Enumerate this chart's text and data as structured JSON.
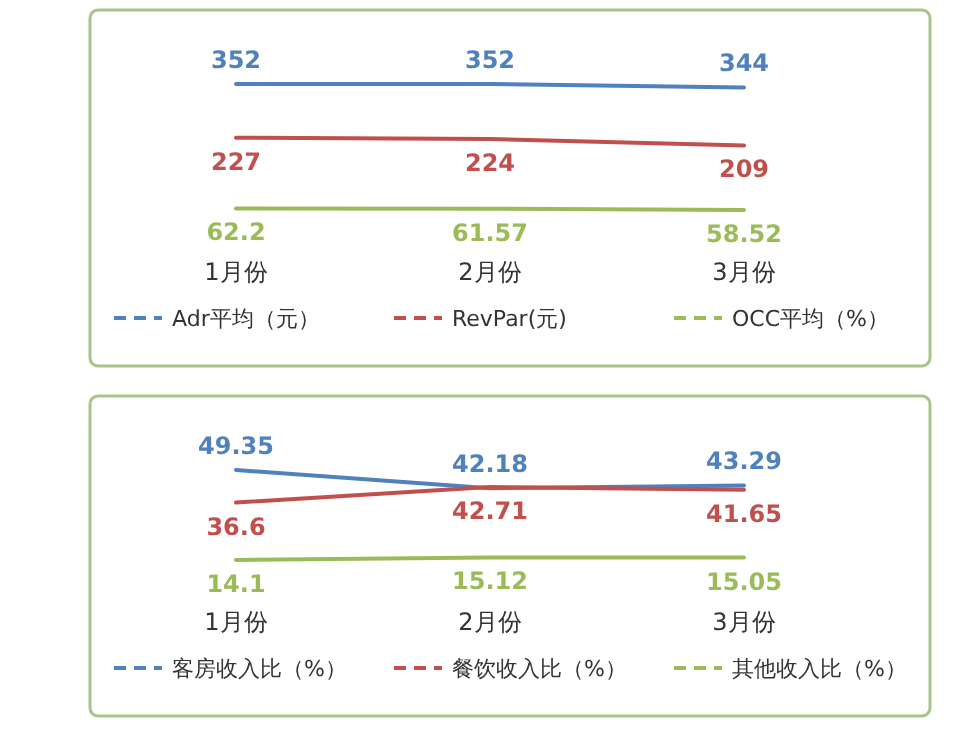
{
  "chart_data": [
    {
      "type": "line",
      "categories": [
        "1月份",
        "2月份",
        "3月份"
      ],
      "data_labels": true,
      "legend": "bottom",
      "series": [
        {
          "name": "Adr平均（元）",
          "color": "#4f81bd",
          "values": [
            352,
            352,
            344
          ]
        },
        {
          "name": "RevPar(元)",
          "color": "#c0504d",
          "values": [
            227,
            224,
            209
          ]
        },
        {
          "name": "OCC平均（%）",
          "color": "#9bbb59",
          "values": [
            62.2,
            61.57,
            58.52
          ]
        }
      ]
    },
    {
      "type": "line",
      "categories": [
        "1月份",
        "2月份",
        "3月份"
      ],
      "data_labels": true,
      "legend": "bottom",
      "series": [
        {
          "name": "客房收入比（%）",
          "color": "#4f81bd",
          "values": [
            49.35,
            42.18,
            43.29
          ]
        },
        {
          "name": "餐饮收入比（%）",
          "color": "#c0504d",
          "values": [
            36.6,
            42.71,
            41.65
          ]
        },
        {
          "name": "其他收入比（%）",
          "color": "#9bbb59",
          "values": [
            14.1,
            15.12,
            15.05
          ]
        }
      ]
    }
  ]
}
